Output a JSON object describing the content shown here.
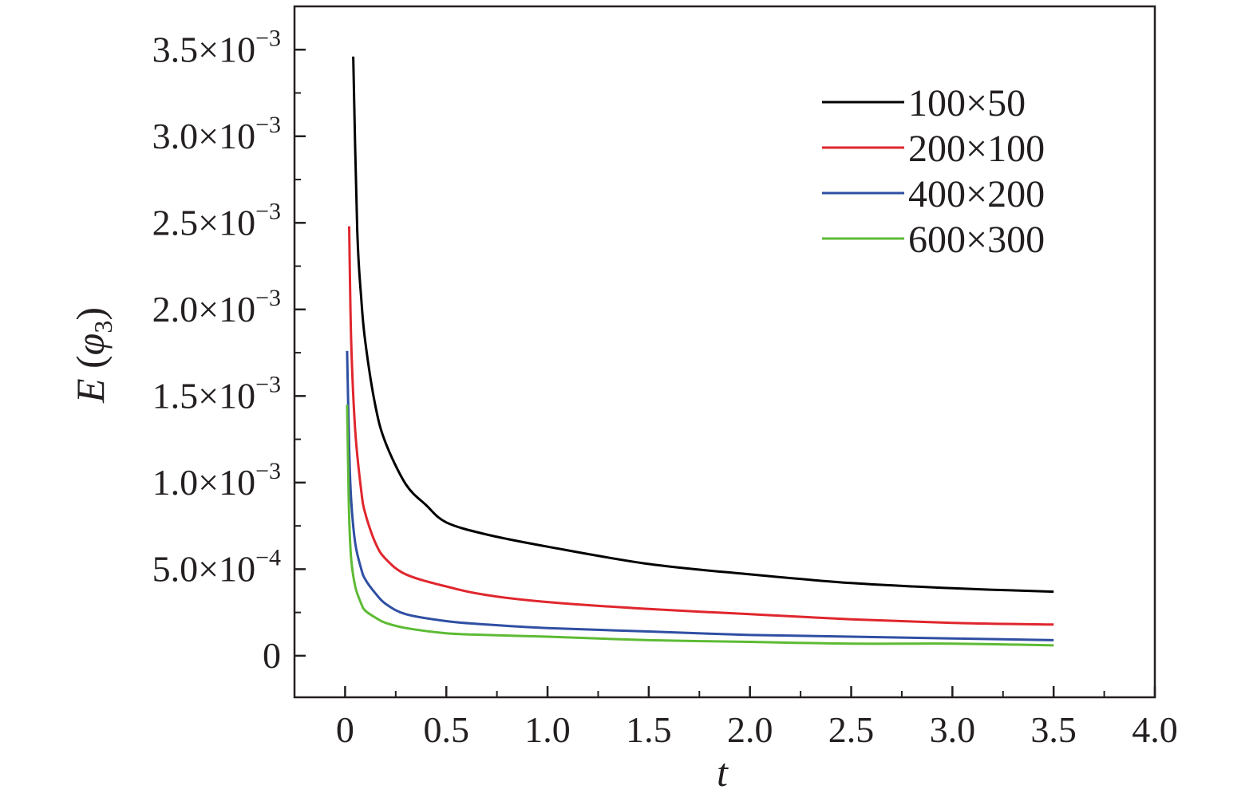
{
  "chart_data": {
    "type": "line",
    "xlabel": "t",
    "ylabel": {
      "main": "E",
      "open": " (",
      "sym": "φ",
      "sub": "3",
      "close": ")"
    },
    "xlim": [
      -0.25,
      4.0
    ],
    "ylim": [
      -0.00024,
      0.00375
    ],
    "x_ticks": [
      {
        "value": 0,
        "label": "0"
      },
      {
        "value": 0.5,
        "label": "0.5"
      },
      {
        "value": 1.0,
        "label": "1.0"
      },
      {
        "value": 1.5,
        "label": "1.5"
      },
      {
        "value": 2.0,
        "label": "2.0"
      },
      {
        "value": 2.5,
        "label": "2.5"
      },
      {
        "value": 3.0,
        "label": "3.0"
      },
      {
        "value": 3.5,
        "label": "3.5"
      },
      {
        "value": 4.0,
        "label": "4.0"
      }
    ],
    "y_ticks": [
      {
        "value": 0,
        "mant": "0",
        "exp": ""
      },
      {
        "value": 0.0005,
        "mant": "5.0×10",
        "exp": "−4"
      },
      {
        "value": 0.001,
        "mant": "1.0×10",
        "exp": "−3"
      },
      {
        "value": 0.0015,
        "mant": "1.5×10",
        "exp": "−3"
      },
      {
        "value": 0.002,
        "mant": "2.0×10",
        "exp": "−3"
      },
      {
        "value": 0.0025,
        "mant": "2.5×10",
        "exp": "−3"
      },
      {
        "value": 0.003,
        "mant": "3.0×10",
        "exp": "−3"
      },
      {
        "value": 0.0035,
        "mant": "3.5×10",
        "exp": "−3"
      }
    ],
    "grid": false,
    "legend_position": "top-right",
    "series": [
      {
        "name": "100×50",
        "color": "#000000",
        "x": [
          0.04,
          0.06,
          0.08,
          0.1,
          0.15,
          0.2,
          0.3,
          0.4,
          0.5,
          0.7,
          1.0,
          1.5,
          2.0,
          2.5,
          3.0,
          3.5
        ],
        "y": [
          0.00346,
          0.00246,
          0.00206,
          0.00181,
          0.00144,
          0.00123,
          0.00099,
          0.00087,
          0.00077,
          0.0007,
          0.00063,
          0.00053,
          0.00047,
          0.00042,
          0.00039,
          0.00037
        ]
      },
      {
        "name": "200×100",
        "color": "#e0262d",
        "x": [
          0.02,
          0.03,
          0.05,
          0.08,
          0.1,
          0.15,
          0.2,
          0.3,
          0.5,
          0.7,
          1.0,
          1.5,
          2.0,
          2.5,
          3.0,
          3.5
        ],
        "y": [
          0.00248,
          0.00182,
          0.0013,
          0.00095,
          0.00082,
          0.00065,
          0.00056,
          0.00047,
          0.0004,
          0.00035,
          0.00031,
          0.00027,
          0.00024,
          0.00021,
          0.00019,
          0.00018
        ]
      },
      {
        "name": "400×200",
        "color": "#2f4fa3",
        "x": [
          0.01,
          0.02,
          0.03,
          0.05,
          0.08,
          0.1,
          0.15,
          0.2,
          0.3,
          0.5,
          0.7,
          1.0,
          1.5,
          2.0,
          2.5,
          3.0,
          3.5
        ],
        "y": [
          0.00176,
          0.0012,
          0.0009,
          0.00065,
          0.0005,
          0.00044,
          0.00036,
          0.0003,
          0.00024,
          0.0002,
          0.00018,
          0.00016,
          0.00014,
          0.00012,
          0.00011,
          0.0001,
          9e-05
        ]
      },
      {
        "name": "600×300",
        "color": "#5dbb34",
        "x": [
          0.01,
          0.015,
          0.02,
          0.03,
          0.05,
          0.08,
          0.1,
          0.15,
          0.2,
          0.3,
          0.5,
          0.7,
          1.0,
          1.5,
          2.0,
          2.5,
          3.0,
          3.5
        ],
        "y": [
          0.00145,
          0.0011,
          0.0008,
          0.00056,
          0.0004,
          0.0003,
          0.00026,
          0.00022,
          0.00019,
          0.00016,
          0.00013,
          0.00012,
          0.00011,
          9e-05,
          8e-05,
          7e-05,
          7e-05,
          6e-05
        ]
      }
    ]
  }
}
